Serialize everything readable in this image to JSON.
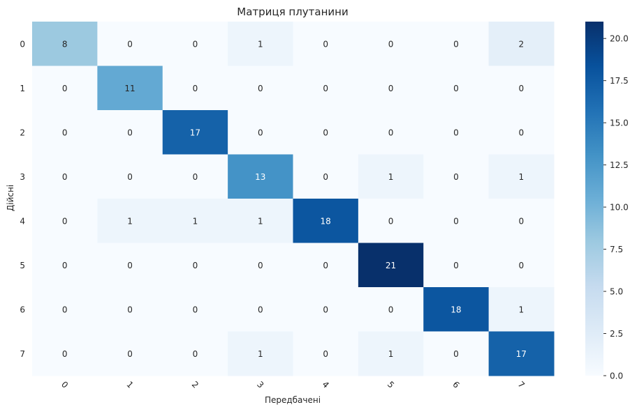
{
  "chart_data": {
    "type": "heatmap",
    "title": "Матриця плутанини",
    "xlabel": "Передбачені",
    "ylabel": "Дійсні",
    "x_categories": [
      "0",
      "1",
      "2",
      "3",
      "4",
      "5",
      "6",
      "7"
    ],
    "y_categories": [
      "0",
      "1",
      "2",
      "3",
      "4",
      "5",
      "6",
      "7"
    ],
    "values": [
      [
        8,
        0,
        0,
        1,
        0,
        0,
        0,
        2
      ],
      [
        0,
        11,
        0,
        0,
        0,
        0,
        0,
        0
      ],
      [
        0,
        0,
        17,
        0,
        0,
        0,
        0,
        0
      ],
      [
        0,
        0,
        0,
        13,
        0,
        1,
        0,
        1
      ],
      [
        0,
        1,
        1,
        1,
        18,
        0,
        0,
        0
      ],
      [
        0,
        0,
        0,
        0,
        0,
        21,
        0,
        0
      ],
      [
        0,
        0,
        0,
        0,
        0,
        0,
        18,
        1
      ],
      [
        0,
        0,
        0,
        1,
        0,
        1,
        0,
        17
      ]
    ],
    "colorbar": {
      "range": [
        0,
        21
      ],
      "ticks": [
        "0.0",
        "2.5",
        "5.0",
        "7.5",
        "10.0",
        "12.5",
        "15.0",
        "17.5",
        "20.0"
      ],
      "colormap": "Blues"
    },
    "x_tick_rotation_deg": 45,
    "grid": false,
    "legend": "colorbar-right"
  }
}
